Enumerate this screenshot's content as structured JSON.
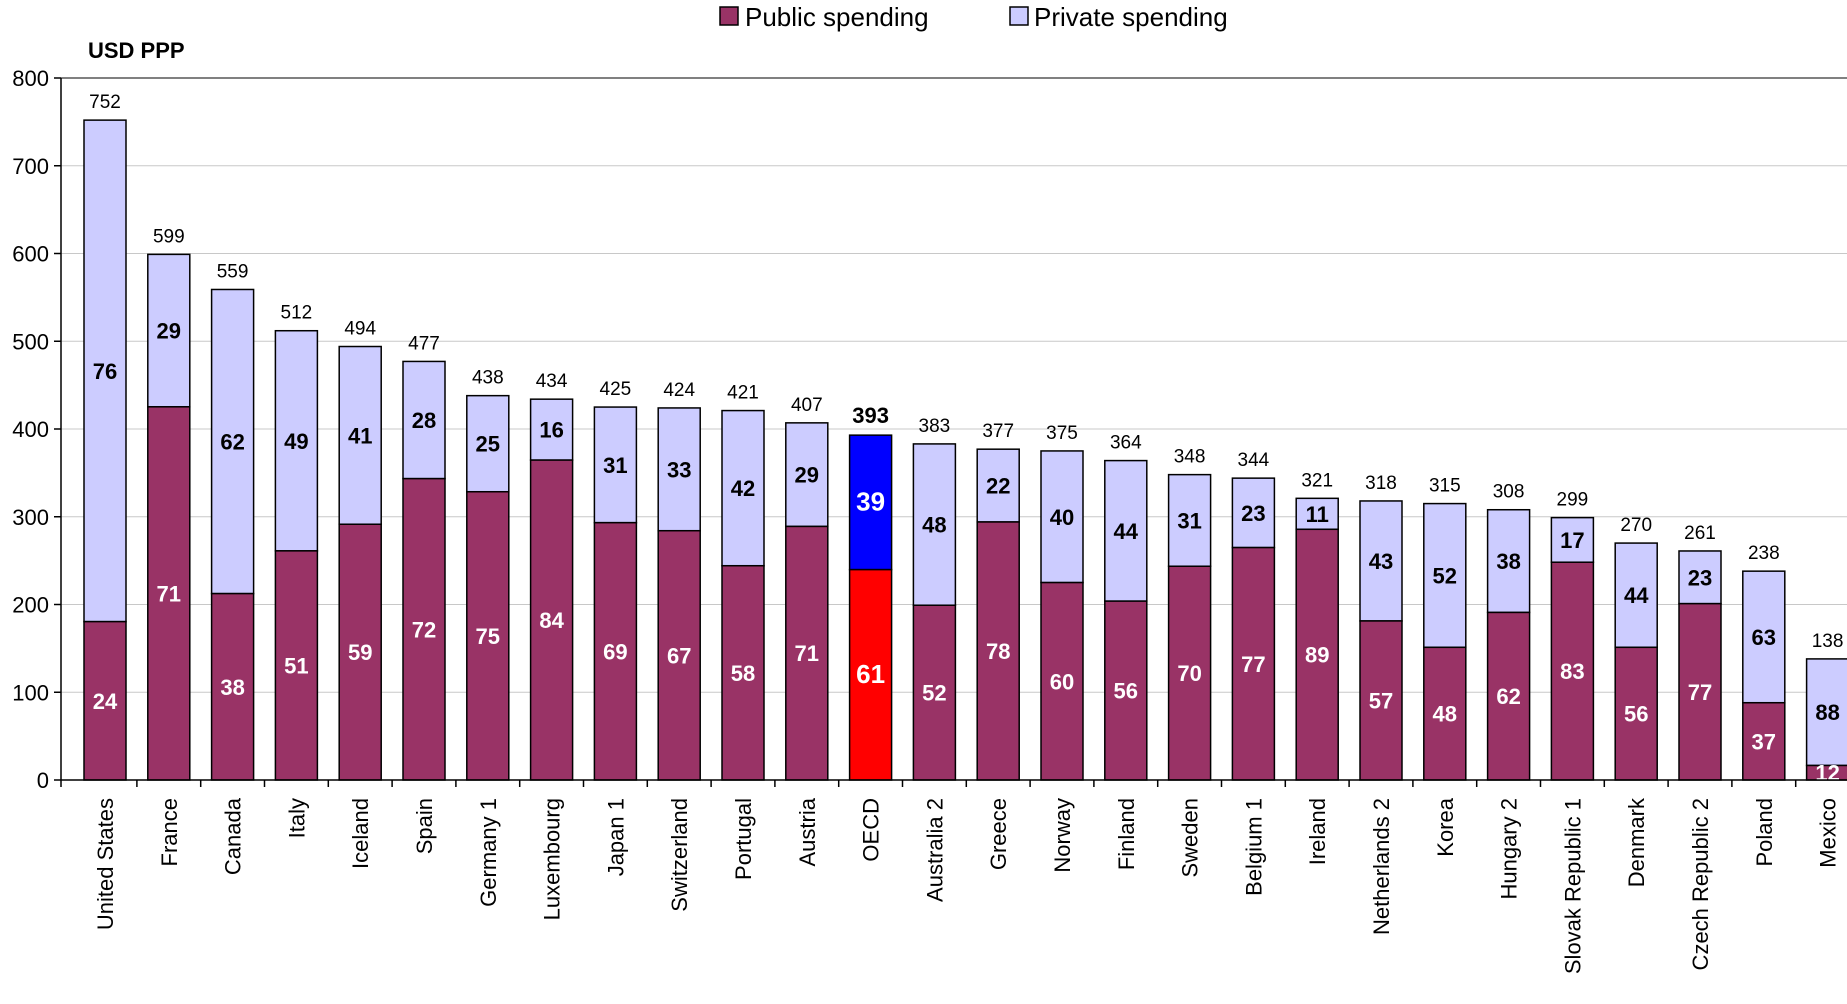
{
  "chart_data": {
    "type": "bar",
    "stacked": true,
    "ylabel": "USD PPP",
    "ylim": [
      0,
      800
    ],
    "yticks": [
      0,
      100,
      200,
      300,
      400,
      500,
      600,
      700,
      800
    ],
    "grid": true,
    "legend_position": "top-center",
    "series": [
      {
        "name": "Public spending",
        "color": "#993366"
      },
      {
        "name": "Private spending",
        "color": "#CCCCFF"
      }
    ],
    "highlight": {
      "category": "OECD",
      "public_color": "#FF0000",
      "private_color": "#0000FF"
    },
    "categories": [
      "United States",
      "France",
      "Canada",
      "Italy",
      "Iceland",
      "Spain",
      "Germany 1",
      "Luxembourg",
      "Japan 1",
      "Switzerland",
      "Portugal",
      "Austria",
      "OECD",
      "Australia 2",
      "Greece",
      "Norway",
      "Finland",
      "Sweden",
      "Belgium 1",
      "Ireland",
      "Netherlands 2",
      "Korea",
      "Hungary 2",
      "Slovak Republic 1",
      "Denmark",
      "Czech Republic 2",
      "Poland",
      "Mexico"
    ],
    "totals": [
      752,
      599,
      559,
      512,
      494,
      477,
      438,
      434,
      425,
      424,
      421,
      407,
      393,
      383,
      377,
      375,
      364,
      348,
      344,
      321,
      318,
      315,
      308,
      299,
      270,
      261,
      238,
      138
    ],
    "public_share_pct": [
      24,
      71,
      38,
      51,
      59,
      72,
      75,
      84,
      69,
      67,
      58,
      71,
      61,
      52,
      78,
      60,
      56,
      70,
      77,
      89,
      57,
      48,
      62,
      83,
      56,
      77,
      37,
      12
    ],
    "private_share_pct": [
      76,
      29,
      62,
      49,
      41,
      28,
      25,
      16,
      31,
      33,
      42,
      29,
      39,
      48,
      22,
      40,
      44,
      31,
      23,
      11,
      43,
      52,
      38,
      17,
      44,
      23,
      63,
      88
    ]
  }
}
